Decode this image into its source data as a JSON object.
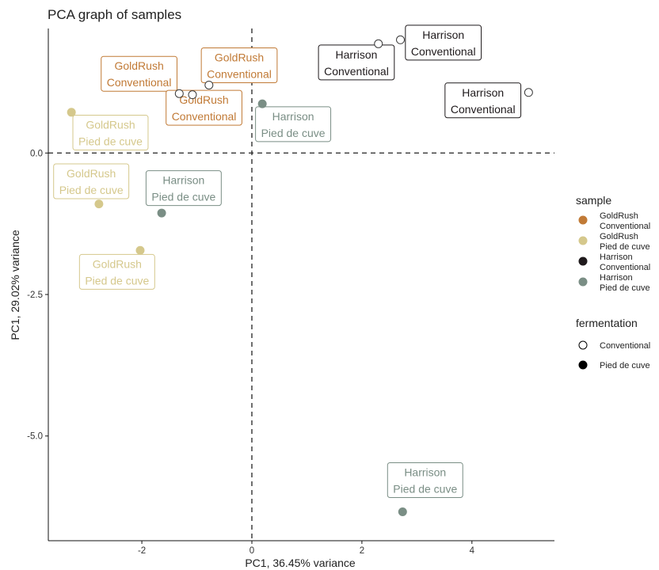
{
  "chart_data": {
    "type": "scatter",
    "title": "PCA graph of samples",
    "xlabel": "PC1, 36.45% variance",
    "ylabel": "PC1, 29.02% variance",
    "xlim": [
      -3.7,
      5.5
    ],
    "ylim": [
      -6.85,
      2.2
    ],
    "x_ticks": [
      -2,
      0,
      2,
      4
    ],
    "x_tick_labels": [
      "-2",
      "0",
      "2",
      "4"
    ],
    "y_ticks": [
      0,
      -2.5,
      -5
    ],
    "y_tick_labels": [
      "0.0",
      "-2.5",
      "-5.0"
    ],
    "grid": false,
    "reference_lines": {
      "x": 0,
      "y": 0,
      "style": "dashed"
    },
    "legend_position": "right",
    "legend": {
      "sample_title": "sample",
      "sample_items": [
        {
          "name": "GoldRush Conventional",
          "line1": "GoldRush",
          "line2": "Conventional",
          "color": "#C17A36"
        },
        {
          "name": "GoldRush Pied de cuve",
          "line1": "GoldRush",
          "line2": "Pied de cuve",
          "color": "#D5C88C"
        },
        {
          "name": "Harrison Conventional",
          "line1": "Harrison",
          "line2": "Conventional",
          "color": "#1F1A1C"
        },
        {
          "name": "Harrison Pied de cuve",
          "line1": "Harrison",
          "line2": "Pied de cuve",
          "color": "#7A8E85"
        }
      ],
      "fermentation_title": "fermentation",
      "fermentation_items": [
        {
          "name": "Conventional",
          "shape": "open-circle"
        },
        {
          "name": "Pied de cuve",
          "shape": "filled-circle"
        }
      ]
    },
    "points": [
      {
        "x": -1.32,
        "y": 1.05,
        "sample": "GoldRush Conventional",
        "fermentation": "Conventional"
      },
      {
        "x": -1.08,
        "y": 1.03,
        "sample": "GoldRush Conventional",
        "fermentation": "Conventional"
      },
      {
        "x": -0.78,
        "y": 1.2,
        "sample": "GoldRush Conventional",
        "fermentation": "Conventional"
      },
      {
        "x": -3.28,
        "y": 0.72,
        "sample": "GoldRush Pied de cuve",
        "fermentation": "Pied de cuve"
      },
      {
        "x": -2.78,
        "y": -0.9,
        "sample": "GoldRush Pied de cuve",
        "fermentation": "Pied de cuve"
      },
      {
        "x": -2.03,
        "y": -1.72,
        "sample": "GoldRush Pied de cuve",
        "fermentation": "Pied de cuve"
      },
      {
        "x": 2.3,
        "y": 1.93,
        "sample": "Harrison Conventional",
        "fermentation": "Conventional"
      },
      {
        "x": 2.7,
        "y": 2.0,
        "sample": "Harrison Conventional",
        "fermentation": "Conventional"
      },
      {
        "x": 5.03,
        "y": 1.07,
        "sample": "Harrison Conventional",
        "fermentation": "Conventional"
      },
      {
        "x": 0.19,
        "y": 0.87,
        "sample": "Harrison Pied de cuve",
        "fermentation": "Pied de cuve"
      },
      {
        "x": -1.64,
        "y": -1.06,
        "sample": "Harrison Pied de cuve",
        "fermentation": "Pied de cuve"
      },
      {
        "x": 2.74,
        "y": -6.34,
        "sample": "Harrison Pied de cuve",
        "fermentation": "Pied de cuve"
      }
    ],
    "labels": [
      {
        "line1": "GoldRush",
        "line2": "Conventional",
        "x": -2.05,
        "y": 1.4,
        "sample": "GoldRush Conventional"
      },
      {
        "line1": "GoldRush",
        "line2": "Conventional",
        "x": -0.23,
        "y": 1.55,
        "sample": "GoldRush Conventional"
      },
      {
        "line1": "GoldRush",
        "line2": "Conventional",
        "x": -0.87,
        "y": 0.8,
        "sample": "GoldRush Conventional"
      },
      {
        "line1": "GoldRush",
        "line2": "Pied de cuve",
        "x": -2.57,
        "y": 0.36,
        "sample": "GoldRush Pied de cuve"
      },
      {
        "line1": "GoldRush",
        "line2": "Pied de cuve",
        "x": -2.92,
        "y": -0.5,
        "sample": "GoldRush Pied de cuve"
      },
      {
        "line1": "GoldRush",
        "line2": "Pied de cuve",
        "x": -2.45,
        "y": -2.1,
        "sample": "GoldRush Pied de cuve"
      },
      {
        "line1": "Harrison",
        "line2": "Conventional",
        "x": 1.9,
        "y": 1.6,
        "sample": "Harrison Conventional"
      },
      {
        "line1": "Harrison",
        "line2": "Conventional",
        "x": 3.48,
        "y": 1.95,
        "sample": "Harrison Conventional"
      },
      {
        "line1": "Harrison",
        "line2": "Conventional",
        "x": 4.2,
        "y": 0.93,
        "sample": "Harrison Conventional"
      },
      {
        "line1": "Harrison",
        "line2": "Pied de cuve",
        "x": 0.75,
        "y": 0.51,
        "sample": "Harrison Pied de cuve"
      },
      {
        "line1": "Harrison",
        "line2": "Pied de cuve",
        "x": -1.24,
        "y": -0.62,
        "sample": "Harrison Pied de cuve"
      },
      {
        "line1": "Harrison",
        "line2": "Pied de cuve",
        "x": 3.15,
        "y": -5.78,
        "sample": "Harrison Pied de cuve"
      }
    ]
  }
}
